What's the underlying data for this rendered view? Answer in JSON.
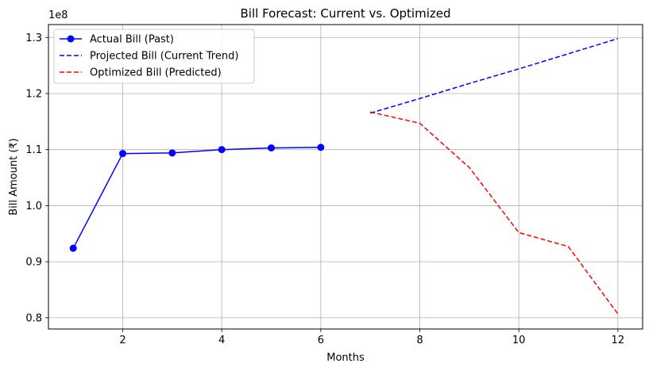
{
  "chart_data": {
    "type": "line",
    "title": "Bill Forecast: Current vs. Optimized",
    "xlabel": "Months",
    "ylabel": "Bill Amount (₹)",
    "y_offset_label": "1e8",
    "xlim": [
      0.5,
      12.5
    ],
    "ylim": [
      0.78,
      1.323
    ],
    "x_ticks": [
      2,
      4,
      6,
      8,
      10,
      12
    ],
    "x_tick_labels": [
      "2",
      "4",
      "6",
      "8",
      "10",
      "12"
    ],
    "y_ticks": [
      0.8,
      0.9,
      1.0,
      1.1,
      1.2,
      1.3
    ],
    "y_tick_labels": [
      "0.8",
      "0.9",
      "1.0",
      "1.1",
      "1.2",
      "1.3"
    ],
    "grid": true,
    "legend_position": "top-left",
    "series": [
      {
        "name": "Actual Bill (Past)",
        "color": "#0000ff",
        "style": "solid",
        "marker": "circle",
        "x": [
          1,
          2,
          3,
          4,
          5,
          6
        ],
        "values": [
          0.924,
          1.093,
          1.094,
          1.1,
          1.103,
          1.104
        ]
      },
      {
        "name": "Projected Bill (Current Trend)",
        "color": "#0000ff",
        "style": "dashed",
        "marker": "none",
        "x": [
          7,
          8,
          9,
          10,
          11,
          12
        ],
        "values": [
          1.165,
          1.191,
          1.218,
          1.244,
          1.271,
          1.298
        ]
      },
      {
        "name": "Optimized Bill (Predicted)",
        "color": "#ff0000",
        "style": "dashed",
        "marker": "none",
        "x": [
          7,
          8,
          9,
          10,
          11,
          12
        ],
        "values": [
          1.167,
          1.147,
          1.068,
          0.952,
          0.927,
          0.807
        ]
      }
    ]
  }
}
